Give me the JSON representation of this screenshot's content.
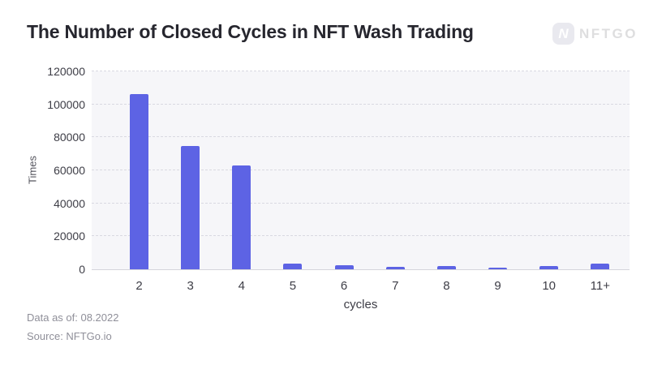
{
  "header": {
    "title": "The Number of Closed Cycles in NFT Wash Trading",
    "logo_text": "NFTGO",
    "logo_letter": "N"
  },
  "chart_data": {
    "type": "bar",
    "title": "The Number of Closed Cycles in NFT Wash Trading",
    "categories": [
      "2",
      "3",
      "4",
      "5",
      "6",
      "7",
      "8",
      "9",
      "10",
      "11+"
    ],
    "values": [
      106000,
      75000,
      63000,
      3400,
      2600,
      1500,
      2200,
      800,
      1900,
      3400
    ],
    "xlabel": "cycles",
    "ylabel": "Times",
    "ylim": [
      0,
      120000
    ],
    "yticks": [
      0,
      20000,
      40000,
      60000,
      80000,
      100000,
      120000
    ],
    "legend": "none",
    "grid": "horizontal-dashed",
    "bar_color": "#5d63e4",
    "plot_bg": "#f6f6f9"
  },
  "footer": {
    "data_as_of": "Data as of: 08.2022",
    "source": "Source: NFTGo.io"
  }
}
